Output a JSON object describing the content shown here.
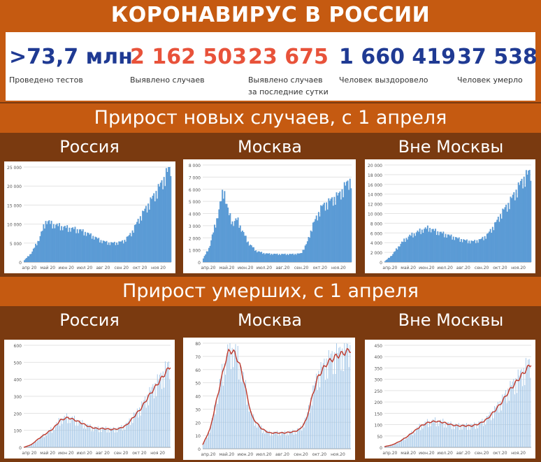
{
  "title": "КОРОНАВИРУС В РОССИИ",
  "stats": [
    {
      "value": ">73,7 млн",
      "label": "Проведено тестов",
      "color": "#1f3a93"
    },
    {
      "value": "2 162 503",
      "label": "Выявлено случаев",
      "color": "#e8523a"
    },
    {
      "value": "23 675",
      "label": "Выявлено случаев за последние сутки",
      "color": "#e8523a"
    },
    {
      "value": "1 660 419",
      "label": "Человек выздоровело",
      "color": "#1f3a93"
    },
    {
      "value": "37 538",
      "label": "Человек умерло",
      "color": "#1f3a93"
    }
  ],
  "sections": {
    "cases_title": "Прирост новых случаев, с 1 апреля",
    "deaths_title": "Прирост умерших, с 1 апреля"
  },
  "regions": [
    "Россия",
    "Москва",
    "Вне Москвы"
  ],
  "colors": {
    "bar_fill": "#5b9bd5",
    "bar_light": "#9dc3e6",
    "avg_line": "#c0392b",
    "brand": "#c55a11",
    "dark": "#7a3a10"
  },
  "chart_data": [
    {
      "type": "area",
      "group": "cases",
      "region": "Россия",
      "x_labels": [
        "апр 20",
        "май 20",
        "июн 20",
        "июл 20",
        "авг 20",
        "сен 20",
        "окт 20",
        "ноя 20"
      ],
      "y_ticks": [
        "0",
        "5 000",
        "10 000",
        "15 000",
        "20 000",
        "25 000"
      ],
      "ylim": [
        0,
        25000
      ],
      "points": [
        [
          0,
          500
        ],
        [
          0.05,
          2500
        ],
        [
          0.1,
          6000
        ],
        [
          0.13,
          9000
        ],
        [
          0.15,
          11000
        ],
        [
          0.18,
          10000
        ],
        [
          0.23,
          9500
        ],
        [
          0.28,
          9000
        ],
        [
          0.33,
          8700
        ],
        [
          0.38,
          8300
        ],
        [
          0.43,
          7500
        ],
        [
          0.48,
          6500
        ],
        [
          0.53,
          5500
        ],
        [
          0.58,
          5000
        ],
        [
          0.63,
          5000
        ],
        [
          0.68,
          5500
        ],
        [
          0.73,
          7500
        ],
        [
          0.78,
          11000
        ],
        [
          0.83,
          14000
        ],
        [
          0.88,
          17000
        ],
        [
          0.93,
          20000
        ],
        [
          0.97,
          23000
        ],
        [
          1,
          25000
        ]
      ]
    },
    {
      "type": "area",
      "group": "cases",
      "region": "Москва",
      "x_labels": [
        "апр.20",
        "май.20",
        "июн.20",
        "июл.20",
        "авг.20",
        "сен.20",
        "окт.20",
        "ноя.20"
      ],
      "y_ticks": [
        "0",
        "1 000",
        "2 000",
        "3 000",
        "4 000",
        "5 000",
        "6 000",
        "7 000",
        "8 000"
      ],
      "ylim": [
        0,
        8000
      ],
      "points": [
        [
          0,
          300
        ],
        [
          0.04,
          1200
        ],
        [
          0.08,
          3000
        ],
        [
          0.12,
          5000
        ],
        [
          0.14,
          6000
        ],
        [
          0.17,
          4000
        ],
        [
          0.2,
          3200
        ],
        [
          0.23,
          3500
        ],
        [
          0.27,
          2400
        ],
        [
          0.31,
          1500
        ],
        [
          0.36,
          900
        ],
        [
          0.42,
          700
        ],
        [
          0.5,
          650
        ],
        [
          0.6,
          650
        ],
        [
          0.66,
          700
        ],
        [
          0.7,
          1500
        ],
        [
          0.74,
          3000
        ],
        [
          0.8,
          4500
        ],
        [
          0.86,
          5000
        ],
        [
          0.92,
          5500
        ],
        [
          0.96,
          6200
        ],
        [
          1,
          6800
        ]
      ]
    },
    {
      "type": "area",
      "group": "cases",
      "region": "Вне Москвы",
      "x_labels": [
        "апр.20",
        "май.20",
        "июн.20",
        "июл.20",
        "авг.20",
        "сен.20",
        "окт.20",
        "ноя.20"
      ],
      "y_ticks": [
        "0",
        "2 000",
        "4 000",
        "6 000",
        "8 000",
        "10 000",
        "12 000",
        "14 000",
        "16 000",
        "18 000",
        "20 000"
      ],
      "ylim": [
        0,
        20000
      ],
      "points": [
        [
          0,
          200
        ],
        [
          0.05,
          1500
        ],
        [
          0.1,
          3500
        ],
        [
          0.15,
          5000
        ],
        [
          0.2,
          5800
        ],
        [
          0.25,
          6500
        ],
        [
          0.3,
          7000
        ],
        [
          0.33,
          6500
        ],
        [
          0.38,
          6000
        ],
        [
          0.43,
          5500
        ],
        [
          0.5,
          4800
        ],
        [
          0.55,
          4400
        ],
        [
          0.6,
          4200
        ],
        [
          0.65,
          4500
        ],
        [
          0.7,
          5500
        ],
        [
          0.75,
          7500
        ],
        [
          0.8,
          10000
        ],
        [
          0.85,
          12000
        ],
        [
          0.9,
          14500
        ],
        [
          0.95,
          17000
        ],
        [
          1,
          18500
        ]
      ]
    },
    {
      "type": "bar+line",
      "group": "deaths",
      "region": "Россия",
      "x_labels": [
        "апр 20",
        "май 20",
        "июн 20",
        "июл 20",
        "авг 20",
        "сен 20",
        "окт 20",
        "ноя 20"
      ],
      "y_ticks": [
        "0",
        "100",
        "200",
        "300",
        "400",
        "500",
        "600"
      ],
      "ylim": [
        0,
        600
      ],
      "points": [
        [
          0,
          0
        ],
        [
          0.05,
          15
        ],
        [
          0.1,
          50
        ],
        [
          0.15,
          80
        ],
        [
          0.2,
          110
        ],
        [
          0.25,
          160
        ],
        [
          0.3,
          175
        ],
        [
          0.35,
          160
        ],
        [
          0.4,
          140
        ],
        [
          0.45,
          120
        ],
        [
          0.5,
          110
        ],
        [
          0.55,
          110
        ],
        [
          0.6,
          105
        ],
        [
          0.65,
          110
        ],
        [
          0.7,
          130
        ],
        [
          0.75,
          180
        ],
        [
          0.8,
          230
        ],
        [
          0.85,
          300
        ],
        [
          0.9,
          360
        ],
        [
          0.95,
          420
        ],
        [
          1,
          480
        ]
      ]
    },
    {
      "type": "bar+line",
      "group": "deaths",
      "region": "Москва",
      "x_labels": [
        "апр.20",
        "май.20",
        "июн.20",
        "июл.20",
        "авг.20",
        "сен.20",
        "окт.20",
        "ноя.20"
      ],
      "y_ticks": [
        "0",
        "10",
        "20",
        "30",
        "40",
        "50",
        "60",
        "70",
        "80"
      ],
      "ylim": [
        0,
        80
      ],
      "points": [
        [
          0,
          3
        ],
        [
          0.05,
          15
        ],
        [
          0.1,
          40
        ],
        [
          0.15,
          65
        ],
        [
          0.18,
          75
        ],
        [
          0.22,
          72
        ],
        [
          0.26,
          60
        ],
        [
          0.3,
          40
        ],
        [
          0.33,
          25
        ],
        [
          0.36,
          20
        ],
        [
          0.4,
          15
        ],
        [
          0.45,
          12
        ],
        [
          0.55,
          12
        ],
        [
          0.62,
          13
        ],
        [
          0.66,
          15
        ],
        [
          0.7,
          22
        ],
        [
          0.74,
          40
        ],
        [
          0.78,
          55
        ],
        [
          0.84,
          65
        ],
        [
          0.9,
          70
        ],
        [
          1,
          75
        ]
      ]
    },
    {
      "type": "bar+line",
      "group": "deaths",
      "region": "Вне Москвы",
      "x_labels": [
        "апр.20",
        "май.20",
        "июн.20",
        "июл.20",
        "авг.20",
        "сен.20",
        "окт.20",
        "ноя.20"
      ],
      "y_ticks": [
        "0",
        "50",
        "100",
        "150",
        "200",
        "250",
        "300",
        "350",
        "400",
        "450"
      ],
      "ylim": [
        0,
        450
      ],
      "points": [
        [
          0,
          3
        ],
        [
          0.05,
          10
        ],
        [
          0.1,
          25
        ],
        [
          0.15,
          45
        ],
        [
          0.2,
          70
        ],
        [
          0.25,
          95
        ],
        [
          0.3,
          110
        ],
        [
          0.35,
          115
        ],
        [
          0.4,
          110
        ],
        [
          0.45,
          100
        ],
        [
          0.5,
          95
        ],
        [
          0.55,
          95
        ],
        [
          0.6,
          95
        ],
        [
          0.65,
          105
        ],
        [
          0.7,
          125
        ],
        [
          0.75,
          160
        ],
        [
          0.8,
          200
        ],
        [
          0.85,
          250
        ],
        [
          0.9,
          290
        ],
        [
          0.95,
          330
        ],
        [
          1,
          370
        ]
      ]
    }
  ]
}
